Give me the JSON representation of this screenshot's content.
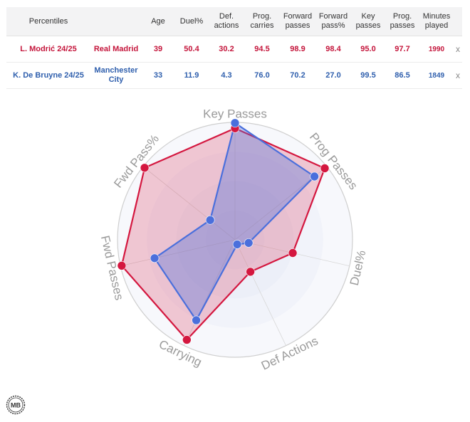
{
  "table": {
    "headers": [
      "Percentiles",
      "",
      "Age",
      "Duel%",
      "Def. actions",
      "Prog. carries",
      "Forward passes",
      "Forward pass%",
      "Key passes",
      "Prog. passes",
      "Minutes played"
    ],
    "rows": [
      {
        "player": "L. Modrić 24/25",
        "team": "Real Madrid",
        "age": "39",
        "duel_pct": "50.4",
        "def_actions": "30.2",
        "prog_carries": "94.5",
        "forward_passes": "98.9",
        "forward_pass_pct": "98.4",
        "key_passes": "95.0",
        "prog_passes": "97.7",
        "minutes": "1990",
        "remove": "x"
      },
      {
        "player": "K. De Bruyne 24/25",
        "team": "Manchester City",
        "age": "33",
        "duel_pct": "11.9",
        "def_actions": "4.3",
        "prog_carries": "76.0",
        "forward_passes": "70.2",
        "forward_pass_pct": "27.0",
        "key_passes": "99.5",
        "prog_passes": "86.5",
        "minutes": "1849",
        "remove": "x"
      }
    ]
  },
  "chart_data": {
    "type": "radar",
    "axes": [
      "Key Passes",
      "Prog Passes",
      "Duel%",
      "Def Actions",
      "Carrying",
      "Fwd Passes",
      "Fwd Pass%"
    ],
    "range": [
      0,
      100
    ],
    "series": [
      {
        "name": "L. Modrić 24/25",
        "color": "#d4173f",
        "values": [
          95.0,
          97.7,
          50.4,
          30.2,
          94.5,
          98.9,
          98.4
        ]
      },
      {
        "name": "K. De Bruyne 24/25",
        "color": "#4a6fdc",
        "values": [
          99.5,
          86.5,
          11.9,
          4.3,
          76.0,
          70.2,
          27.0
        ]
      }
    ]
  },
  "logo_text": "MB",
  "colors": {
    "ring_fill": "#eef1f8",
    "grid": "#d8d8d8",
    "label": "#9a9a9a"
  }
}
